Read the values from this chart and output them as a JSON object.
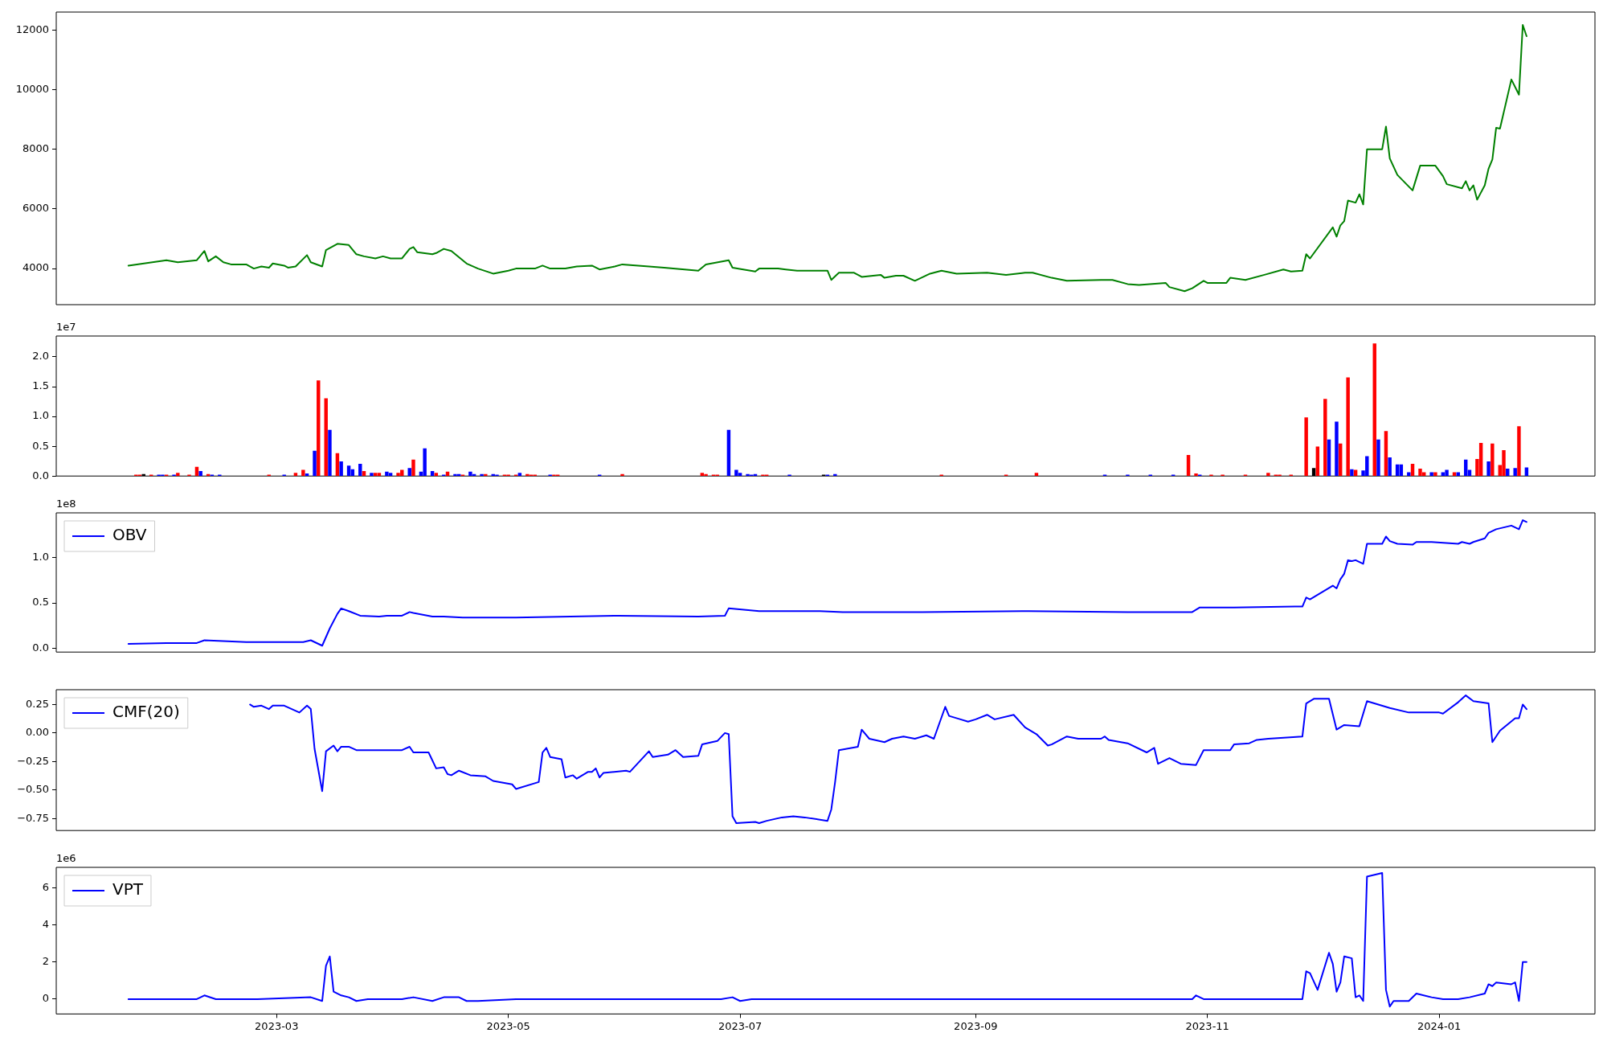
{
  "chart_data": [
    {
      "type": "line",
      "color": "#008000",
      "xlim": [
        "2023-01-02",
        "2024-02-11"
      ],
      "ylim": [
        2790,
        12600
      ],
      "yticks": [
        4000,
        6000,
        8000,
        10000,
        12000
      ],
      "tick_labels": "y",
      "x": [
        "2023-01-21",
        "2023-01-31",
        "2023-02-03",
        "2023-02-08",
        "2023-02-10",
        "2023-02-11",
        "2023-02-13",
        "2023-02-15",
        "2023-02-17",
        "2023-02-21",
        "2023-02-23",
        "2023-02-25",
        "2023-02-27",
        "2023-02-28",
        "2023-03-03",
        "2023-03-04",
        "2023-03-06",
        "2023-03-09",
        "2023-03-10",
        "2023-03-13",
        "2023-03-14",
        "2023-03-17",
        "2023-03-20",
        "2023-03-22",
        "2023-03-24",
        "2023-03-27",
        "2023-03-29",
        "2023-03-31",
        "2023-04-03",
        "2023-04-05",
        "2023-04-06",
        "2023-04-07",
        "2023-04-11",
        "2023-04-12",
        "2023-04-14",
        "2023-04-16",
        "2023-04-18",
        "2023-04-20",
        "2023-04-23",
        "2023-04-27",
        "2023-05-01",
        "2023-05-03",
        "2023-05-08",
        "2023-05-10",
        "2023-05-12",
        "2023-05-16",
        "2023-05-19",
        "2023-05-23",
        "2023-05-25",
        "2023-05-29",
        "2023-05-31",
        "2023-06-07",
        "2023-06-11",
        "2023-06-20",
        "2023-06-22",
        "2023-06-28",
        "2023-06-29",
        "2023-07-05",
        "2023-07-06",
        "2023-07-11",
        "2023-07-13",
        "2023-07-16",
        "2023-07-20",
        "2023-07-24",
        "2023-07-25",
        "2023-07-27",
        "2023-07-31",
        "2023-08-02",
        "2023-08-07",
        "2023-08-08",
        "2023-08-11",
        "2023-08-13",
        "2023-08-16",
        "2023-08-20",
        "2023-08-23",
        "2023-08-27",
        "2023-09-04",
        "2023-09-09",
        "2023-09-14",
        "2023-09-16",
        "2023-09-21",
        "2023-09-25",
        "2023-10-04",
        "2023-10-07",
        "2023-10-11",
        "2023-10-14",
        "2023-10-21",
        "2023-10-22",
        "2023-10-26",
        "2023-10-28",
        "2023-10-31",
        "2023-11-01",
        "2023-11-06",
        "2023-11-07",
        "2023-11-11",
        "2023-11-16",
        "2023-11-21",
        "2023-11-23",
        "2023-11-26",
        "2023-11-27",
        "2023-11-28",
        "2023-12-04",
        "2023-12-05",
        "2023-12-06",
        "2023-12-07",
        "2023-12-08",
        "2023-12-10",
        "2023-12-11",
        "2023-12-12",
        "2023-12-13",
        "2023-12-17",
        "2023-12-18",
        "2023-12-19",
        "2023-12-21",
        "2023-12-25",
        "2023-12-27",
        "2023-12-31",
        "2024-01-02",
        "2024-01-03",
        "2024-01-07",
        "2024-01-08",
        "2024-01-09",
        "2024-01-10",
        "2024-01-11",
        "2024-01-13",
        "2024-01-14",
        "2024-01-15",
        "2024-01-16",
        "2024-01-17",
        "2024-01-20",
        "2024-01-22",
        "2024-01-23",
        "2024-01-24"
      ],
      "values": [
        4100,
        4280,
        4210,
        4280,
        4590,
        4240,
        4410,
        4210,
        4140,
        4140,
        4000,
        4070,
        4030,
        4170,
        4100,
        4030,
        4070,
        4450,
        4210,
        4070,
        4620,
        4830,
        4790,
        4480,
        4410,
        4340,
        4410,
        4340,
        4340,
        4660,
        4720,
        4550,
        4480,
        4520,
        4660,
        4590,
        4380,
        4170,
        4000,
        3830,
        3930,
        4000,
        4000,
        4100,
        4000,
        4000,
        4070,
        4100,
        3970,
        4070,
        4140,
        4070,
        4030,
        3930,
        4140,
        4280,
        4030,
        3900,
        4000,
        4000,
        3970,
        3930,
        3930,
        3930,
        3620,
        3860,
        3860,
        3720,
        3790,
        3690,
        3760,
        3760,
        3590,
        3830,
        3930,
        3830,
        3860,
        3790,
        3860,
        3860,
        3690,
        3590,
        3620,
        3620,
        3480,
        3450,
        3520,
        3380,
        3240,
        3340,
        3590,
        3520,
        3520,
        3690,
        3620,
        3790,
        3970,
        3900,
        3930,
        4480,
        4340,
        5380,
        5070,
        5450,
        5590,
        6280,
        6210,
        6490,
        6150,
        8000,
        8000,
        8760,
        7690,
        7140,
        6620,
        7450,
        7450,
        7100,
        6830,
        6690,
        6930,
        6620,
        6790,
        6310,
        6790,
        7350,
        7660,
        8720,
        8690,
        10340,
        9830,
        12170,
        11790
      ]
    },
    {
      "type": "bar",
      "xlim": [
        "2023-01-02",
        "2024-02-11"
      ],
      "ylim": [
        0,
        2.35
      ],
      "yticks": [
        {
          "value": 0,
          "label": "0.0"
        },
        0.5,
        {
          "value": 1,
          "label": "1.0"
        },
        1.5,
        {
          "value": 2,
          "label": "2.0"
        }
      ],
      "tick_labels": "y",
      "annotations": [
        "1e7"
      ],
      "x": [
        "2023-01-23",
        "2023-01-24",
        "2023-01-25",
        "2023-01-27",
        "2023-01-29",
        "2023-01-30",
        "2023-01-31",
        "2023-02-02",
        "2023-02-03",
        "2023-02-06",
        "2023-02-08",
        "2023-02-09",
        "2023-02-11",
        "2023-02-12",
        "2023-02-14",
        "2023-02-27",
        "2023-03-03",
        "2023-03-06",
        "2023-03-08",
        "2023-03-09",
        "2023-03-11",
        "2023-03-12",
        "2023-03-14",
        "2023-03-15",
        "2023-03-17",
        "2023-03-18",
        "2023-03-20",
        "2023-03-21",
        "2023-03-23",
        "2023-03-24",
        "2023-03-26",
        "2023-03-27",
        "2023-03-28",
        "2023-03-30",
        "2023-03-31",
        "2023-04-02",
        "2023-04-03",
        "2023-04-05",
        "2023-04-06",
        "2023-04-08",
        "2023-04-09",
        "2023-04-11",
        "2023-04-12",
        "2023-04-14",
        "2023-04-15",
        "2023-04-17",
        "2023-04-18",
        "2023-04-19",
        "2023-04-21",
        "2023-04-22",
        "2023-04-24",
        "2023-04-25",
        "2023-04-27",
        "2023-04-28",
        "2023-04-30",
        "2023-05-01",
        "2023-05-03",
        "2023-05-04",
        "2023-05-06",
        "2023-05-07",
        "2023-05-08",
        "2023-05-12",
        "2023-05-13",
        "2023-05-14",
        "2023-05-25",
        "2023-05-31",
        "2023-06-21",
        "2023-06-22",
        "2023-06-24",
        "2023-06-25",
        "2023-06-28",
        "2023-06-30",
        "2023-07-01",
        "2023-07-03",
        "2023-07-04",
        "2023-07-05",
        "2023-07-07",
        "2023-07-08",
        "2023-07-14",
        "2023-07-23",
        "2023-07-24",
        "2023-07-26",
        "2023-08-23",
        "2023-09-09",
        "2023-09-17",
        "2023-10-05",
        "2023-10-11",
        "2023-10-17",
        "2023-10-23",
        "2023-10-27",
        "2023-10-29",
        "2023-10-30",
        "2023-11-02",
        "2023-11-05",
        "2023-11-11",
        "2023-11-17",
        "2023-11-19",
        "2023-11-20",
        "2023-11-23",
        "2023-11-27",
        "2023-11-29",
        "2023-11-30",
        "2023-12-02",
        "2023-12-03",
        "2023-12-05",
        "2023-12-06",
        "2023-12-08",
        "2023-12-09",
        "2023-12-10",
        "2023-12-12",
        "2023-12-13",
        "2023-12-15",
        "2023-12-16",
        "2023-12-18",
        "2023-12-19",
        "2023-12-21",
        "2023-12-22",
        "2023-12-24",
        "2023-12-25",
        "2023-12-27",
        "2023-12-28",
        "2023-12-30",
        "2023-12-31",
        "2024-01-02",
        "2024-01-03",
        "2024-01-05",
        "2024-01-06",
        "2024-01-08",
        "2024-01-09",
        "2024-01-11",
        "2024-01-12",
        "2024-01-14",
        "2024-01-15",
        "2024-01-17",
        "2024-01-18",
        "2024-01-19",
        "2024-01-21",
        "2024-01-22",
        "2024-01-24"
      ],
      "values": [
        0.02,
        0.02,
        0.03,
        0.02,
        0.02,
        0.02,
        0.02,
        0.02,
        0.05,
        0.02,
        0.15,
        0.08,
        0.03,
        0.02,
        0.02,
        0.02,
        0.02,
        0.05,
        0.1,
        0.04,
        0.42,
        1.6,
        1.3,
        0.77,
        0.38,
        0.24,
        0.17,
        0.11,
        0.2,
        0.08,
        0.05,
        0.05,
        0.05,
        0.07,
        0.05,
        0.05,
        0.1,
        0.13,
        0.27,
        0.07,
        0.46,
        0.08,
        0.05,
        0.02,
        0.07,
        0.03,
        0.03,
        0.02,
        0.07,
        0.03,
        0.03,
        0.03,
        0.03,
        0.02,
        0.02,
        0.02,
        0.02,
        0.05,
        0.03,
        0.02,
        0.02,
        0.02,
        0.02,
        0.02,
        0.02,
        0.03,
        0.05,
        0.03,
        0.02,
        0.02,
        0.77,
        0.1,
        0.05,
        0.03,
        0.02,
        0.03,
        0.02,
        0.02,
        0.02,
        0.02,
        0.02,
        0.03,
        0.02,
        0.02,
        0.05,
        0.02,
        0.02,
        0.02,
        0.02,
        0.35,
        0.04,
        0.02,
        0.02,
        0.02,
        0.02,
        0.05,
        0.02,
        0.02,
        0.02,
        0.98,
        0.13,
        0.49,
        1.29,
        0.61,
        0.91,
        0.54,
        1.65,
        0.11,
        0.1,
        0.09,
        0.33,
        2.22,
        0.61,
        0.75,
        0.31,
        0.19,
        0.19,
        0.06,
        0.2,
        0.12,
        0.06,
        0.06,
        0.06,
        0.06,
        0.1,
        0.06,
        0.06,
        0.27,
        0.1,
        0.28,
        0.55,
        0.24,
        0.54,
        0.18,
        0.43,
        0.12,
        0.13,
        0.83,
        0.14
      ],
      "colors": [
        "#ff0000",
        "#ff0000",
        "#000000",
        "#ff0000",
        "#0000ff",
        "#0000ff",
        "#ff0000",
        "#0000ff",
        "#ff0000",
        "#ff0000",
        "#ff0000",
        "#0000ff",
        "#ff0000",
        "#0000ff",
        "#0000ff",
        "#ff0000",
        "#0000ff",
        "#ff0000",
        "#ff0000",
        "#0000ff",
        "#0000ff",
        "#ff0000",
        "#ff0000",
        "#0000ff",
        "#ff0000",
        "#0000ff",
        "#0000ff",
        "#0000ff",
        "#0000ff",
        "#ff0000",
        "#0000ff",
        "#ff0000",
        "#ff0000",
        "#0000ff",
        "#0000ff",
        "#ff0000",
        "#ff0000",
        "#0000ff",
        "#ff0000",
        "#0000ff",
        "#0000ff",
        "#0000ff",
        "#ff0000",
        "#0000ff",
        "#ff0000",
        "#0000ff",
        "#0000ff",
        "#ff0000",
        "#0000ff",
        "#0000ff",
        "#0000ff",
        "#ff0000",
        "#0000ff",
        "#0000ff",
        "#ff0000",
        "#ff0000",
        "#ff0000",
        "#0000ff",
        "#ff0000",
        "#ff0000",
        "#ff0000",
        "#0000ff",
        "#ff0000",
        "#ff0000",
        "#0000ff",
        "#ff0000",
        "#ff0000",
        "#ff0000",
        "#ff0000",
        "#ff0000",
        "#0000ff",
        "#0000ff",
        "#0000ff",
        "#0000ff",
        "#0000ff",
        "#0000ff",
        "#ff0000",
        "#ff0000",
        "#0000ff",
        "#000000",
        "#0000ff",
        "#0000ff",
        "#ff0000",
        "#ff0000",
        "#ff0000",
        "#0000ff",
        "#0000ff",
        "#0000ff",
        "#0000ff",
        "#ff0000",
        "#ff0000",
        "#0000ff",
        "#ff0000",
        "#ff0000",
        "#ff0000",
        "#ff0000",
        "#ff0000",
        "#ff0000",
        "#ff0000",
        "#ff0000",
        "#000000",
        "#ff0000",
        "#ff0000",
        "#0000ff",
        "#0000ff",
        "#ff0000",
        "#ff0000",
        "#0000ff",
        "#ff0000",
        "#0000ff",
        "#0000ff",
        "#ff0000",
        "#0000ff",
        "#ff0000",
        "#0000ff",
        "#0000ff",
        "#0000ff",
        "#0000ff",
        "#ff0000",
        "#ff0000",
        "#ff0000",
        "#0000ff",
        "#ff0000",
        "#0000ff",
        "#0000ff",
        "#ff0000",
        "#0000ff",
        "#0000ff",
        "#0000ff",
        "#ff0000",
        "#ff0000",
        "#0000ff",
        "#ff0000",
        "#ff0000",
        "#ff0000",
        "#0000ff",
        "#0000ff",
        "#ff0000",
        "#0000ff"
      ]
    },
    {
      "type": "line",
      "xlim": [
        "2023-01-02",
        "2024-02-11"
      ],
      "ylim": [
        -0.04,
        1.49
      ],
      "yticks": [
        {
          "value": 0,
          "label": "0.0"
        },
        0.5,
        {
          "value": 1,
          "label": "1.0"
        }
      ],
      "tick_labels": "y",
      "legend": "top left",
      "annotations": [
        "1e8"
      ],
      "series": [
        {
          "name": "OBV",
          "color": "#0000ff",
          "x": [
            "2023-01-21",
            "2023-01-31",
            "2023-02-08",
            "2023-02-10",
            "2023-02-21",
            "2023-03-08",
            "2023-03-10",
            "2023-03-13",
            "2023-03-15",
            "2023-03-17",
            "2023-03-18",
            "2023-03-20",
            "2023-03-23",
            "2023-03-28",
            "2023-03-30",
            "2023-04-03",
            "2023-04-05",
            "2023-04-06",
            "2023-04-11",
            "2023-04-14",
            "2023-04-19",
            "2023-05-03",
            "2023-05-30",
            "2023-06-20",
            "2023-06-27",
            "2023-06-28",
            "2023-07-06",
            "2023-07-22",
            "2023-07-28",
            "2023-08-18",
            "2023-09-15",
            "2023-10-11",
            "2023-10-28",
            "2023-10-30",
            "2023-11-08",
            "2023-11-24",
            "2023-11-26",
            "2023-11-27",
            "2023-11-28",
            "2023-12-04",
            "2023-12-05",
            "2023-12-06",
            "2023-12-07",
            "2023-12-08",
            "2023-12-09",
            "2023-12-10",
            "2023-12-12",
            "2023-12-13",
            "2023-12-17",
            "2023-12-18",
            "2023-12-19",
            "2023-12-21",
            "2023-12-25",
            "2023-12-26",
            "2023-12-30",
            "2024-01-06",
            "2024-01-07",
            "2024-01-09",
            "2024-01-10",
            "2024-01-13",
            "2024-01-14",
            "2024-01-16",
            "2024-01-20",
            "2024-01-22",
            "2024-01-23",
            "2024-01-24"
          ],
          "values": [
            0.05,
            0.06,
            0.06,
            0.09,
            0.07,
            0.07,
            0.09,
            0.03,
            0.22,
            0.38,
            0.44,
            0.41,
            0.36,
            0.35,
            0.36,
            0.36,
            0.4,
            0.39,
            0.35,
            0.35,
            0.34,
            0.34,
            0.36,
            0.35,
            0.36,
            0.44,
            0.41,
            0.41,
            0.4,
            0.4,
            0.41,
            0.4,
            0.4,
            0.45,
            0.45,
            0.46,
            0.46,
            0.56,
            0.54,
            0.69,
            0.66,
            0.76,
            0.82,
            0.97,
            0.96,
            0.97,
            0.93,
            1.15,
            1.15,
            1.23,
            1.18,
            1.15,
            1.14,
            1.17,
            1.17,
            1.15,
            1.17,
            1.15,
            1.17,
            1.21,
            1.27,
            1.31,
            1.35,
            1.31,
            1.41,
            1.39
          ]
        }
      ]
    },
    {
      "type": "line",
      "xlim": [
        "2023-01-02",
        "2024-02-11"
      ],
      "ylim": [
        -0.855,
        0.38
      ],
      "yticks": [
        {
          "value": -0.75,
          "label": "−0.75"
        },
        {
          "value": -0.5,
          "label": "−0.50"
        },
        {
          "value": -0.25,
          "label": "−0.25"
        },
        {
          "value": 0,
          "label": "0.00"
        },
        0.25
      ],
      "tick_labels": "y",
      "legend": "top left",
      "series": [
        {
          "name": "CMF(20)",
          "color": "#0000ff",
          "x": [
            "2023-02-22",
            "2023-02-23",
            "2023-02-25",
            "2023-02-27",
            "2023-02-28",
            "2023-03-03",
            "2023-03-07",
            "2023-03-09",
            "2023-03-10",
            "2023-03-11",
            "2023-03-13",
            "2023-03-14",
            "2023-03-16",
            "2023-03-17",
            "2023-03-18",
            "2023-03-20",
            "2023-03-22",
            "2023-03-25",
            "2023-04-03",
            "2023-04-05",
            "2023-04-06",
            "2023-04-10",
            "2023-04-12",
            "2023-04-14",
            "2023-04-15",
            "2023-04-16",
            "2023-04-18",
            "2023-04-21",
            "2023-04-25",
            "2023-04-27",
            "2023-05-02",
            "2023-05-03",
            "2023-05-09",
            "2023-05-10",
            "2023-05-11",
            "2023-05-12",
            "2023-05-15",
            "2023-05-16",
            "2023-05-18",
            "2023-05-19",
            "2023-05-22",
            "2023-05-23",
            "2023-05-24",
            "2023-05-25",
            "2023-05-26",
            "2023-06-01",
            "2023-06-02",
            "2023-06-07",
            "2023-06-08",
            "2023-06-12",
            "2023-06-14",
            "2023-06-16",
            "2023-06-20",
            "2023-06-21",
            "2023-06-25",
            "2023-06-27",
            "2023-06-28",
            "2023-06-29",
            "2023-06-30",
            "2023-07-05",
            "2023-07-06",
            "2023-07-08",
            "2023-07-12",
            "2023-07-15",
            "2023-07-18",
            "2023-07-24",
            "2023-07-25",
            "2023-07-26",
            "2023-07-27",
            "2023-08-01",
            "2023-08-02",
            "2023-08-04",
            "2023-08-08",
            "2023-08-10",
            "2023-08-13",
            "2023-08-16",
            "2023-08-19",
            "2023-08-21",
            "2023-08-24",
            "2023-08-25",
            "2023-08-28",
            "2023-08-30",
            "2023-09-01",
            "2023-09-04",
            "2023-09-06",
            "2023-09-11",
            "2023-09-14",
            "2023-09-17",
            "2023-09-20",
            "2023-09-21",
            "2023-09-25",
            "2023-09-28",
            "2023-10-04",
            "2023-10-05",
            "2023-10-06",
            "2023-10-11",
            "2023-10-16",
            "2023-10-18",
            "2023-10-19",
            "2023-10-22",
            "2023-10-25",
            "2023-10-29",
            "2023-10-31",
            "2023-11-07",
            "2023-11-08",
            "2023-11-12",
            "2023-11-14",
            "2023-11-17",
            "2023-11-26",
            "2023-11-27",
            "2023-11-29",
            "2023-12-03",
            "2023-12-05",
            "2023-12-07",
            "2023-12-11",
            "2023-12-13",
            "2023-12-19",
            "2023-12-24",
            "2024-01-01",
            "2024-01-02",
            "2024-01-06",
            "2024-01-08",
            "2024-01-10",
            "2024-01-14",
            "2024-01-15",
            "2024-01-17",
            "2024-01-21",
            "2024-01-22",
            "2024-01-23",
            "2024-01-24"
          ],
          "values": [
            0.25,
            0.23,
            0.24,
            0.21,
            0.24,
            0.24,
            0.18,
            0.24,
            0.21,
            -0.14,
            -0.51,
            -0.16,
            -0.11,
            -0.16,
            -0.12,
            -0.12,
            -0.15,
            -0.15,
            -0.15,
            -0.12,
            -0.17,
            -0.17,
            -0.31,
            -0.3,
            -0.36,
            -0.37,
            -0.33,
            -0.37,
            -0.38,
            -0.42,
            -0.45,
            -0.49,
            -0.43,
            -0.17,
            -0.13,
            -0.21,
            -0.23,
            -0.39,
            -0.37,
            -0.4,
            -0.34,
            -0.34,
            -0.31,
            -0.39,
            -0.35,
            -0.33,
            -0.34,
            -0.16,
            -0.21,
            -0.19,
            -0.15,
            -0.21,
            -0.2,
            -0.1,
            -0.07,
            0,
            -0.01,
            -0.73,
            -0.79,
            -0.78,
            -0.79,
            -0.77,
            -0.74,
            -0.73,
            -0.74,
            -0.77,
            -0.67,
            -0.43,
            -0.15,
            -0.12,
            0.03,
            -0.05,
            -0.08,
            -0.05,
            -0.03,
            -0.05,
            -0.02,
            -0.05,
            0.23,
            0.15,
            0.12,
            0.1,
            0.12,
            0.16,
            0.12,
            0.16,
            0.05,
            -0.01,
            -0.11,
            -0.1,
            -0.03,
            -0.05,
            -0.05,
            -0.03,
            -0.06,
            -0.09,
            -0.17,
            -0.13,
            -0.27,
            -0.22,
            -0.27,
            -0.28,
            -0.15,
            -0.15,
            -0.1,
            -0.09,
            -0.06,
            -0.05,
            -0.03,
            0.26,
            0.3,
            0.3,
            0.03,
            0.07,
            0.06,
            0.28,
            0.22,
            0.18,
            0.18,
            0.17,
            0.27,
            0.33,
            0.28,
            0.26,
            -0.08,
            0.02,
            0.13,
            0.13,
            0.25,
            0.21
          ]
        }
      ]
    },
    {
      "type": "line",
      "xlim": [
        "2023-01-02",
        "2024-02-11"
      ],
      "ylim": [
        -0.8,
        7.1
      ],
      "yticks": [
        0,
        2,
        4,
        6
      ],
      "xticks": [
        "2023-03",
        "2023-05",
        "2023-07",
        "2023-09",
        "2023-11",
        "2024-01"
      ],
      "legend": "top left",
      "annotations": [
        "1e6"
      ],
      "series": [
        {
          "name": "VPT",
          "color": "#0000ff",
          "x": [
            "2023-01-21",
            "2023-02-08",
            "2023-02-10",
            "2023-02-13",
            "2023-02-24",
            "2023-03-10",
            "2023-03-13",
            "2023-03-14",
            "2023-03-15",
            "2023-03-16",
            "2023-03-18",
            "2023-03-20",
            "2023-03-22",
            "2023-03-25",
            "2023-04-03",
            "2023-04-06",
            "2023-04-11",
            "2023-04-14",
            "2023-04-18",
            "2023-04-20",
            "2023-04-23",
            "2023-05-03",
            "2023-06-26",
            "2023-06-29",
            "2023-07-01",
            "2023-07-04",
            "2023-10-28",
            "2023-10-29",
            "2023-10-31",
            "2023-11-26",
            "2023-11-27",
            "2023-11-28",
            "2023-11-30",
            "2023-12-03",
            "2023-12-04",
            "2023-12-05",
            "2023-12-06",
            "2023-12-07",
            "2023-12-09",
            "2023-12-10",
            "2023-12-11",
            "2023-12-12",
            "2023-12-13",
            "2023-12-17",
            "2023-12-18",
            "2023-12-19",
            "2023-12-20",
            "2023-12-24",
            "2023-12-26",
            "2023-12-30",
            "2024-01-02",
            "2024-01-06",
            "2024-01-09",
            "2024-01-13",
            "2024-01-14",
            "2024-01-15",
            "2024-01-16",
            "2024-01-20",
            "2024-01-21",
            "2024-01-22",
            "2024-01-23",
            "2024-01-24"
          ],
          "values": [
            0,
            0,
            0.2,
            0,
            0,
            0.1,
            -0.1,
            1.8,
            2.3,
            0.4,
            0.2,
            0.1,
            -0.1,
            0,
            0,
            0.1,
            -0.1,
            0.1,
            0.1,
            -0.1,
            -0.1,
            0,
            0,
            0.1,
            -0.1,
            0,
            0,
            0.2,
            0,
            0,
            1.5,
            1.4,
            0.5,
            2.5,
            1.9,
            0.4,
            0.9,
            2.3,
            2.2,
            0.1,
            0.2,
            -0.1,
            6.6,
            6.8,
            0.5,
            -0.4,
            -0.1,
            -0.1,
            0.3,
            0.1,
            0,
            0,
            0.1,
            0.3,
            0.8,
            0.7,
            0.9,
            0.8,
            0.9,
            -0.1,
            2,
            2
          ]
        }
      ]
    }
  ]
}
